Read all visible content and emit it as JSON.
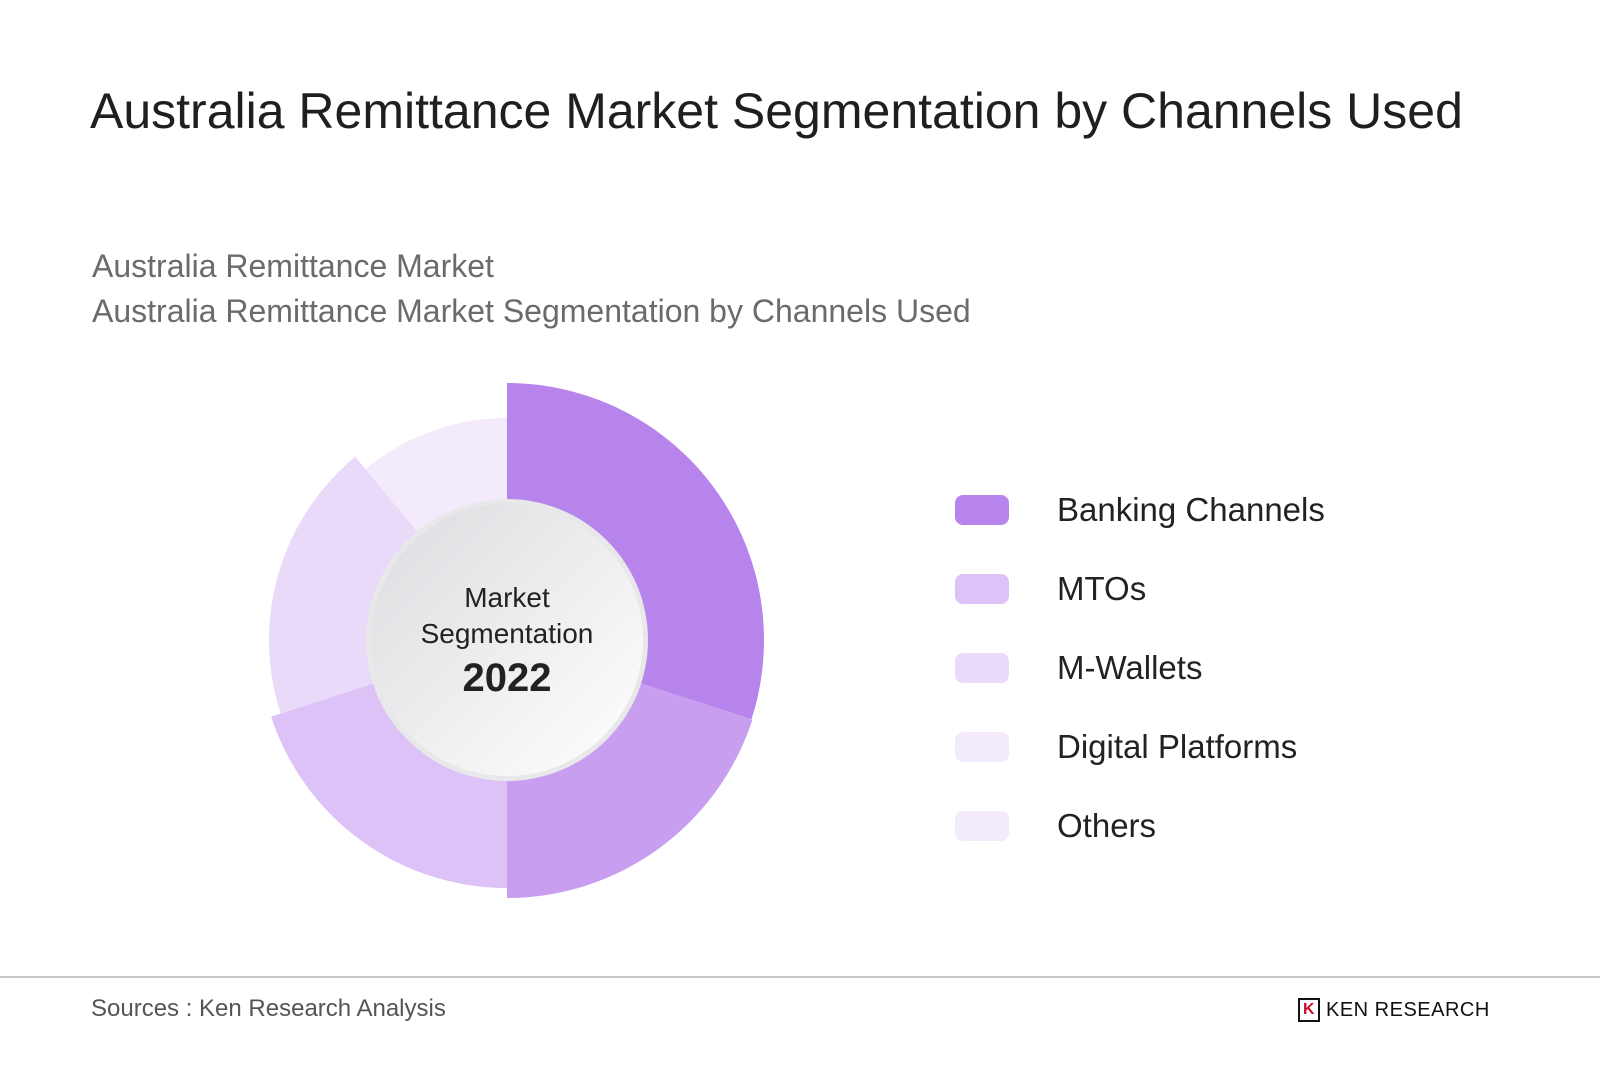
{
  "title": "Australia Remittance Market Segmentation by Channels Used",
  "subtitle1": "Australia Remittance Market",
  "subtitle2": "Australia Remittance Market Segmentation by Channels Used",
  "center": {
    "line1": "Market",
    "line2": "Segmentation",
    "year": "2022"
  },
  "chart_data": {
    "type": "pie",
    "variant": "donut (variable-radius)",
    "categories": [
      "Banking Channels",
      "MTOs",
      "M-Wallets",
      "Digital Platforms",
      "Others"
    ],
    "values": [
      30,
      20,
      20,
      19,
      11
    ],
    "colors": [
      "#b784ec",
      "#c89ff0",
      "#dcc2f6",
      "#e9daf9",
      "#f3ebfb"
    ],
    "legend_colors": [
      "#b784ec",
      "#dcc2f6",
      "#e9daf9",
      "#f3ebfb",
      "#f3ebfb"
    ],
    "legend_position": "right"
  },
  "footer": {
    "source": "Sources : Ken Research Analysis",
    "logo": "KEN RESEARCH"
  }
}
